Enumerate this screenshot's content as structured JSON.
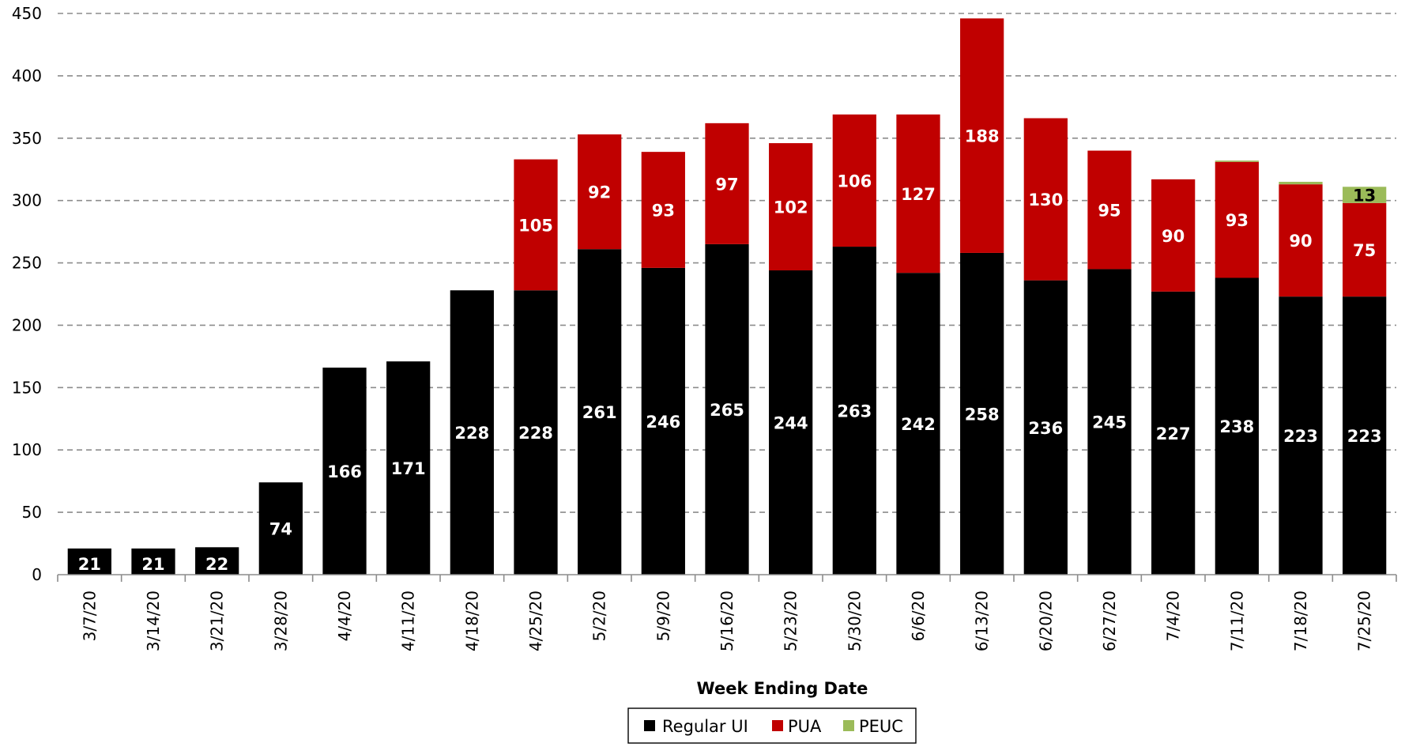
{
  "chart_data": {
    "type": "bar",
    "stacked": true,
    "title": "",
    "xlabel": "Week Ending Date",
    "ylabel": "",
    "ylim": [
      0,
      450
    ],
    "yticks": [
      0,
      50,
      100,
      150,
      200,
      250,
      300,
      350,
      400,
      450
    ],
    "grid": true,
    "legend_position": "bottom",
    "categories": [
      "3/7/20",
      "3/14/20",
      "3/21/20",
      "3/28/20",
      "4/4/20",
      "4/11/20",
      "4/18/20",
      "4/25/20",
      "5/2/20",
      "5/9/20",
      "5/16/20",
      "5/23/20",
      "5/30/20",
      "6/6/20",
      "6/13/20",
      "6/20/20",
      "6/27/20",
      "7/4/20",
      "7/11/20",
      "7/18/20",
      "7/25/20"
    ],
    "series": [
      {
        "name": "Regular UI",
        "color": "#000000",
        "label_color": "#ffffff",
        "values": [
          21,
          21,
          22,
          74,
          166,
          171,
          228,
          228,
          261,
          246,
          265,
          244,
          263,
          242,
          258,
          236,
          245,
          227,
          238,
          223,
          223
        ],
        "labels": [
          "21",
          "21",
          "22",
          "74",
          "166",
          "171",
          "228",
          "228",
          "261",
          "246",
          "265",
          "244",
          "263",
          "242",
          "258",
          "236",
          "245",
          "227",
          "238",
          "223",
          "223"
        ]
      },
      {
        "name": "PUA",
        "color": "#C00000",
        "label_color": "#ffffff",
        "values": [
          0,
          0,
          0,
          0,
          0,
          0,
          0,
          105,
          92,
          93,
          97,
          102,
          106,
          127,
          188,
          130,
          95,
          90,
          93,
          90,
          75
        ],
        "labels": [
          "",
          "",
          "",
          "",
          "",
          "",
          "",
          "105",
          "92",
          "93",
          "97",
          "102",
          "106",
          "127",
          "188",
          "130",
          "95",
          "90",
          "93",
          "90",
          "75"
        ]
      },
      {
        "name": "PEUC",
        "color": "#9BBB59",
        "label_color": "#000000",
        "values": [
          0,
          0,
          0,
          0,
          0,
          0,
          0,
          0,
          0,
          0,
          0,
          0,
          0,
          0,
          0,
          0,
          0,
          0,
          1,
          2,
          13
        ],
        "labels": [
          "",
          "",
          "",
          "",
          "",
          "",
          "",
          "",
          "",
          "",
          "",
          "",
          "",
          "",
          "",
          "",
          "",
          "",
          "",
          "",
          "13"
        ]
      }
    ]
  }
}
